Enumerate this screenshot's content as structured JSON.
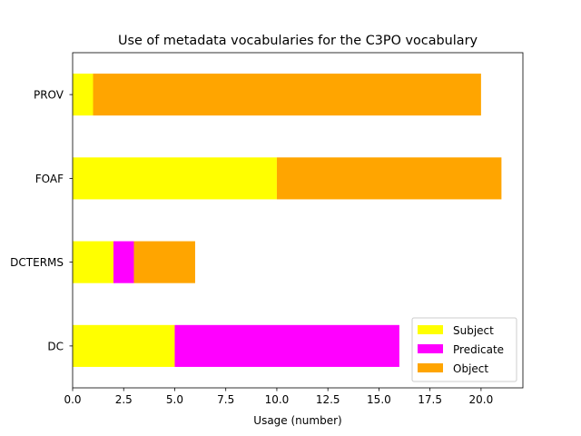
{
  "chart_data": {
    "type": "bar",
    "orientation": "horizontal",
    "stacked": true,
    "title": "Use of metadata vocabularies for the C3PO vocabulary",
    "xlabel": "Usage (number)",
    "ylabel": "",
    "categories": [
      "DC",
      "DCTERMS",
      "FOAF",
      "PROV"
    ],
    "series": [
      {
        "name": "Subject",
        "color": "#ffff00",
        "values": [
          5,
          2,
          10,
          1
        ]
      },
      {
        "name": "Predicate",
        "color": "#ff00ff",
        "values": [
          11,
          1,
          0,
          0
        ]
      },
      {
        "name": "Object",
        "color": "#ffa500",
        "values": [
          0,
          3,
          11,
          19
        ]
      }
    ],
    "xlim": [
      0,
      22.05
    ],
    "xticks": [
      "0.0",
      "2.5",
      "5.0",
      "7.5",
      "10.0",
      "12.5",
      "15.0",
      "17.5",
      "20.0"
    ],
    "grid": false,
    "legend_position": "lower right"
  }
}
